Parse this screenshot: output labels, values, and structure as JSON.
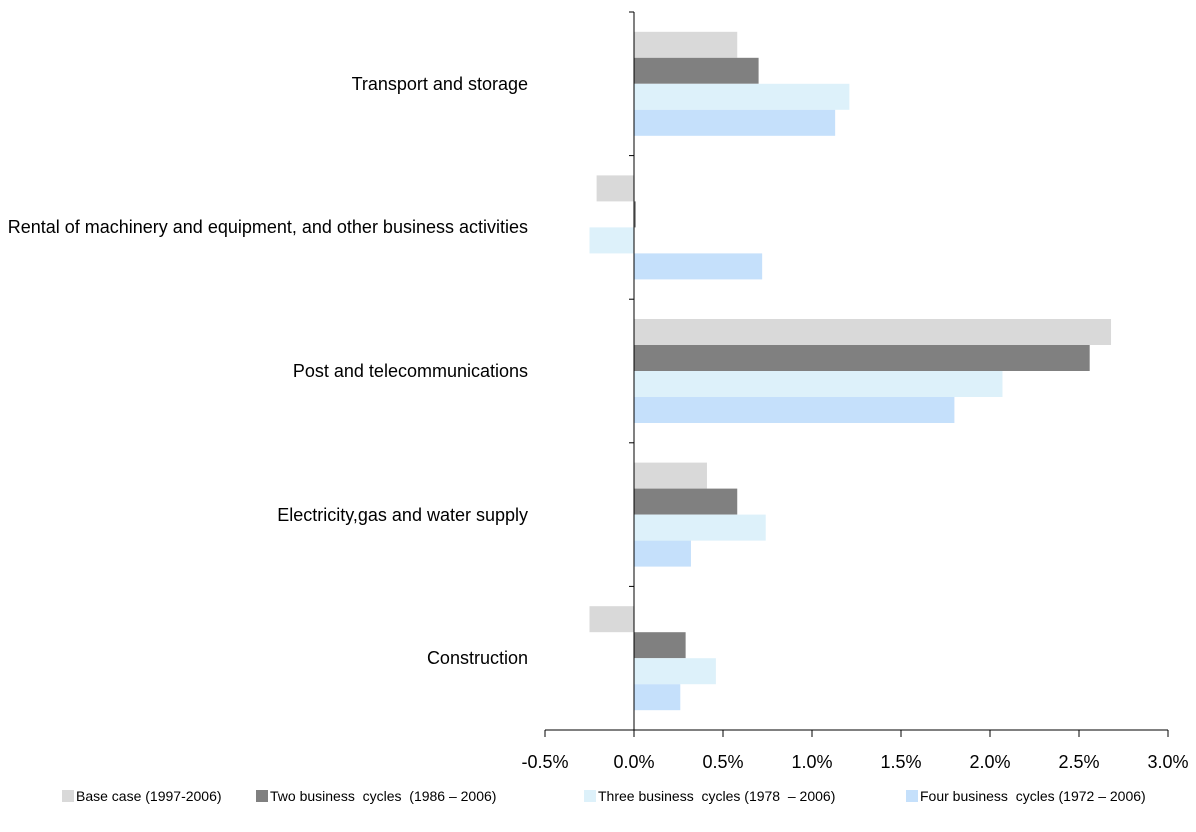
{
  "chart_data": {
    "type": "bar",
    "orientation": "horizontal",
    "categories": [
      "Transport and storage",
      "Rental of machinery and equipment, and other business activities",
      "Post and telecommunications",
      "Electricity,gas and water supply",
      "Construction"
    ],
    "series": [
      {
        "name": "Base case (1997-2006)",
        "color": "#d9d9d9",
        "values": [
          0.58,
          -0.21,
          2.68,
          0.41,
          -0.25
        ]
      },
      {
        "name": "Two business  cycles  (1986 – 2006)",
        "color": "#808080",
        "values": [
          0.7,
          0.01,
          2.56,
          0.58,
          0.29
        ]
      },
      {
        "name": "Three business  cycles (1978  – 2006)",
        "color": "#ddf1fa",
        "values": [
          1.21,
          -0.25,
          2.07,
          0.74,
          0.46
        ]
      },
      {
        "name": "Four business  cycles (1972 – 2006)",
        "color": "#c5e0fb",
        "values": [
          1.13,
          0.72,
          1.8,
          0.32,
          0.26
        ]
      }
    ],
    "xlim": [
      -0.5,
      3.0
    ],
    "xticks": [
      {
        "value": -0.5,
        "label": "-0.5%"
      },
      {
        "value": 0,
        "label": "0.0%"
      },
      {
        "value": 0.5,
        "label": "0.5%"
      },
      {
        "value": 1.0,
        "label": "1.0%"
      },
      {
        "value": 1.5,
        "label": "1.5%"
      },
      {
        "value": 2.0,
        "label": "2.0%"
      },
      {
        "value": 2.5,
        "label": "2.5%"
      },
      {
        "value": 3.0,
        "label": "3.0%"
      }
    ],
    "legend": "bottom"
  }
}
